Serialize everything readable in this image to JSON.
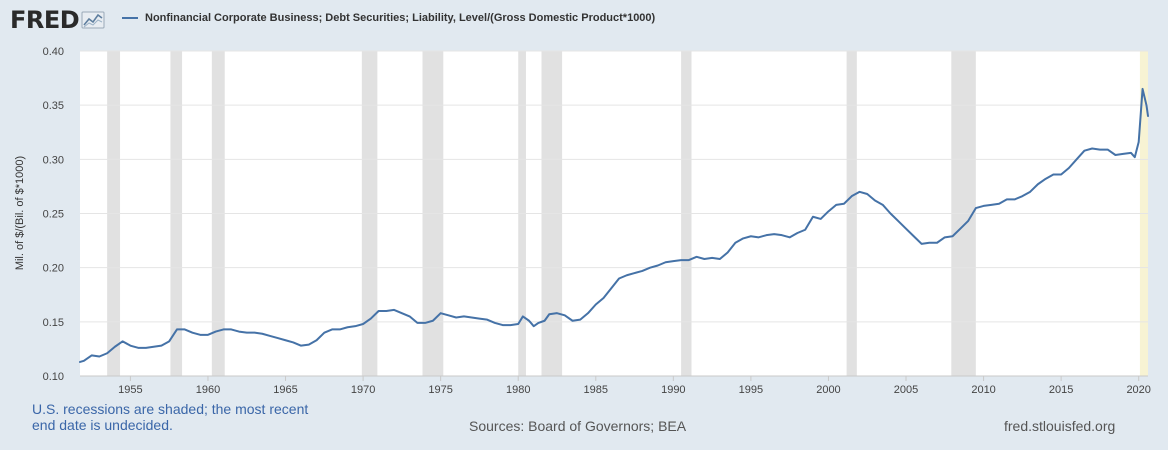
{
  "header": {
    "logo_text": "FRED",
    "logo_icon": "line-chart-icon"
  },
  "chart_data": {
    "type": "line",
    "title": "",
    "series": [
      {
        "name": "Nonfinancial Corporate Business; Debt Securities; Liability, Level/(Gross Domestic Product*1000)",
        "color": "#4572a7",
        "points": [
          [
            1951.75,
            0.113
          ],
          [
            1952.0,
            0.114
          ],
          [
            1952.5,
            0.119
          ],
          [
            1953.0,
            0.118
          ],
          [
            1953.5,
            0.121
          ],
          [
            1954.0,
            0.127
          ],
          [
            1954.5,
            0.132
          ],
          [
            1955.0,
            0.128
          ],
          [
            1955.5,
            0.126
          ],
          [
            1956.0,
            0.126
          ],
          [
            1956.5,
            0.127
          ],
          [
            1957.0,
            0.128
          ],
          [
            1957.5,
            0.132
          ],
          [
            1958.0,
            0.143
          ],
          [
            1958.5,
            0.143
          ],
          [
            1959.0,
            0.14
          ],
          [
            1959.5,
            0.138
          ],
          [
            1960.0,
            0.138
          ],
          [
            1960.5,
            0.141
          ],
          [
            1961.0,
            0.143
          ],
          [
            1961.5,
            0.143
          ],
          [
            1962.0,
            0.141
          ],
          [
            1962.5,
            0.14
          ],
          [
            1963.0,
            0.14
          ],
          [
            1963.5,
            0.139
          ],
          [
            1964.0,
            0.137
          ],
          [
            1964.5,
            0.135
          ],
          [
            1965.0,
            0.133
          ],
          [
            1965.5,
            0.131
          ],
          [
            1966.0,
            0.128
          ],
          [
            1966.5,
            0.129
          ],
          [
            1967.0,
            0.133
          ],
          [
            1967.5,
            0.14
          ],
          [
            1968.0,
            0.143
          ],
          [
            1968.5,
            0.143
          ],
          [
            1969.0,
            0.145
          ],
          [
            1969.5,
            0.146
          ],
          [
            1970.0,
            0.148
          ],
          [
            1970.5,
            0.153
          ],
          [
            1971.0,
            0.16
          ],
          [
            1971.5,
            0.16
          ],
          [
            1972.0,
            0.161
          ],
          [
            1972.5,
            0.158
          ],
          [
            1973.0,
            0.155
          ],
          [
            1973.5,
            0.149
          ],
          [
            1974.0,
            0.149
          ],
          [
            1974.5,
            0.151
          ],
          [
            1975.0,
            0.158
          ],
          [
            1975.5,
            0.156
          ],
          [
            1976.0,
            0.154
          ],
          [
            1976.5,
            0.155
          ],
          [
            1977.0,
            0.154
          ],
          [
            1977.5,
            0.153
          ],
          [
            1978.0,
            0.152
          ],
          [
            1978.5,
            0.149
          ],
          [
            1979.0,
            0.147
          ],
          [
            1979.5,
            0.147
          ],
          [
            1980.0,
            0.148
          ],
          [
            1980.3,
            0.155
          ],
          [
            1980.7,
            0.151
          ],
          [
            1981.0,
            0.146
          ],
          [
            1981.3,
            0.149
          ],
          [
            1981.7,
            0.151
          ],
          [
            1982.0,
            0.157
          ],
          [
            1982.5,
            0.158
          ],
          [
            1983.0,
            0.156
          ],
          [
            1983.5,
            0.151
          ],
          [
            1984.0,
            0.152
          ],
          [
            1984.5,
            0.158
          ],
          [
            1985.0,
            0.166
          ],
          [
            1985.5,
            0.172
          ],
          [
            1986.0,
            0.181
          ],
          [
            1986.5,
            0.19
          ],
          [
            1987.0,
            0.193
          ],
          [
            1987.5,
            0.195
          ],
          [
            1988.0,
            0.197
          ],
          [
            1988.5,
            0.2
          ],
          [
            1989.0,
            0.202
          ],
          [
            1989.5,
            0.205
          ],
          [
            1990.0,
            0.206
          ],
          [
            1990.5,
            0.207
          ],
          [
            1991.0,
            0.207
          ],
          [
            1991.5,
            0.21
          ],
          [
            1992.0,
            0.208
          ],
          [
            1992.5,
            0.209
          ],
          [
            1993.0,
            0.208
          ],
          [
            1993.5,
            0.214
          ],
          [
            1994.0,
            0.223
          ],
          [
            1994.5,
            0.227
          ],
          [
            1995.0,
            0.229
          ],
          [
            1995.5,
            0.228
          ],
          [
            1996.0,
            0.23
          ],
          [
            1996.5,
            0.231
          ],
          [
            1997.0,
            0.23
          ],
          [
            1997.5,
            0.228
          ],
          [
            1998.0,
            0.232
          ],
          [
            1998.5,
            0.235
          ],
          [
            1999.0,
            0.247
          ],
          [
            1999.5,
            0.245
          ],
          [
            2000.0,
            0.252
          ],
          [
            2000.5,
            0.258
          ],
          [
            2001.0,
            0.259
          ],
          [
            2001.5,
            0.266
          ],
          [
            2002.0,
            0.27
          ],
          [
            2002.5,
            0.268
          ],
          [
            2003.0,
            0.262
          ],
          [
            2003.5,
            0.258
          ],
          [
            2004.0,
            0.25
          ],
          [
            2004.5,
            0.243
          ],
          [
            2005.0,
            0.236
          ],
          [
            2005.5,
            0.229
          ],
          [
            2006.0,
            0.222
          ],
          [
            2006.5,
            0.223
          ],
          [
            2007.0,
            0.223
          ],
          [
            2007.5,
            0.228
          ],
          [
            2008.0,
            0.229
          ],
          [
            2008.5,
            0.236
          ],
          [
            2009.0,
            0.243
          ],
          [
            2009.5,
            0.255
          ],
          [
            2010.0,
            0.257
          ],
          [
            2010.5,
            0.258
          ],
          [
            2011.0,
            0.259
          ],
          [
            2011.5,
            0.263
          ],
          [
            2012.0,
            0.263
          ],
          [
            2012.5,
            0.266
          ],
          [
            2013.0,
            0.27
          ],
          [
            2013.5,
            0.277
          ],
          [
            2014.0,
            0.282
          ],
          [
            2014.5,
            0.286
          ],
          [
            2015.0,
            0.286
          ],
          [
            2015.5,
            0.292
          ],
          [
            2016.0,
            0.3
          ],
          [
            2016.5,
            0.308
          ],
          [
            2017.0,
            0.31
          ],
          [
            2017.5,
            0.309
          ],
          [
            2018.0,
            0.309
          ],
          [
            2018.5,
            0.304
          ],
          [
            2019.0,
            0.305
          ],
          [
            2019.5,
            0.306
          ],
          [
            2019.75,
            0.302
          ],
          [
            2020.0,
            0.316
          ],
          [
            2020.25,
            0.365
          ],
          [
            2020.5,
            0.35
          ],
          [
            2020.6,
            0.34
          ]
        ]
      }
    ],
    "ylabel": "Mil. of $/(Bil. of $*1000)",
    "xlabel": "",
    "xlim": [
      1951.75,
      2020.6
    ],
    "ylim": [
      0.1,
      0.4
    ],
    "x_ticks": [
      1955,
      1960,
      1965,
      1970,
      1975,
      1980,
      1985,
      1990,
      1995,
      2000,
      2005,
      2010,
      2015,
      2020
    ],
    "y_ticks": [
      "0.10",
      "0.15",
      "0.20",
      "0.25",
      "0.30",
      "0.35",
      "0.40"
    ],
    "grid": "horizontal",
    "legend_position": "top-left",
    "recessions": [
      [
        1953.5,
        1954.33
      ],
      [
        1957.58,
        1958.33
      ],
      [
        1960.25,
        1961.08
      ],
      [
        1969.92,
        1970.92
      ],
      [
        1973.83,
        1975.17
      ],
      [
        1980.0,
        1980.5
      ],
      [
        1981.5,
        1982.83
      ],
      [
        1990.5,
        1991.17
      ],
      [
        2001.17,
        2001.83
      ],
      [
        2007.92,
        2009.5
      ],
      [
        2020.08,
        2020.6
      ]
    ],
    "colors": {
      "line": "#4572a7",
      "recession": "#e1e1e1",
      "recession_recent": "#f7f3d3",
      "grid": "#e5e5e5",
      "plot_bg": "#ffffff"
    }
  },
  "footer": {
    "note": "U.S. recessions are shaded; the most recent end date is undecided.",
    "sources": "Sources: Board of Governors; BEA",
    "url": "fred.stlouisfed.org"
  }
}
